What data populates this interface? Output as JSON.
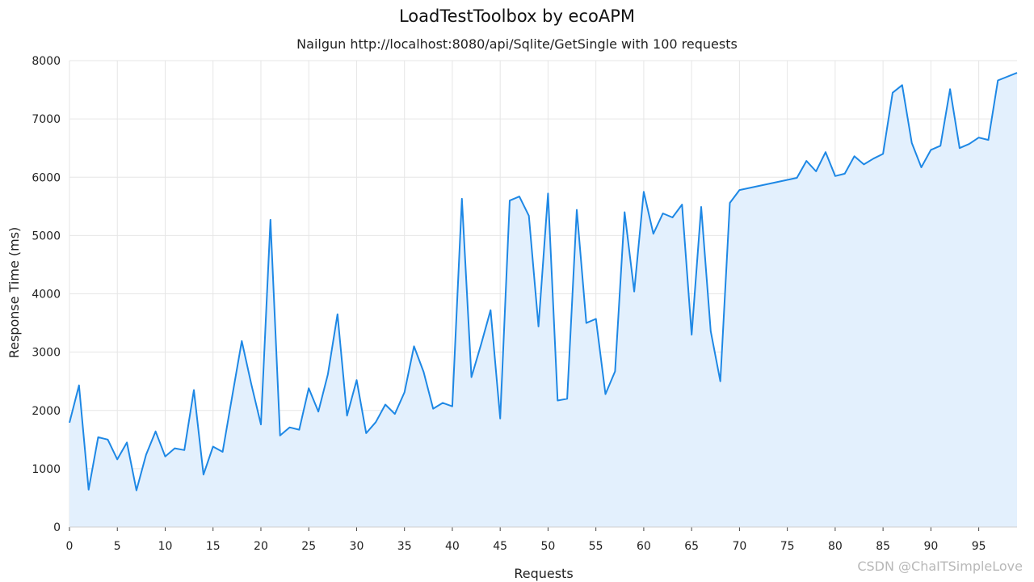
{
  "chart_data": {
    "type": "area",
    "title": "LoadTestToolbox by ecoAPM",
    "subtitle": "Nailgun http://localhost:8080/api/Sqlite/GetSingle with 100 requests",
    "xlabel": "Requests",
    "ylabel": "Response Time (ms)",
    "xlim": [
      0,
      99
    ],
    "ylim": [
      0,
      8000
    ],
    "x_ticks": [
      0,
      5,
      10,
      15,
      20,
      25,
      30,
      35,
      40,
      45,
      50,
      55,
      60,
      65,
      70,
      75,
      80,
      85,
      90,
      95
    ],
    "y_ticks": [
      0,
      1000,
      2000,
      3000,
      4000,
      5000,
      6000,
      7000,
      8000
    ],
    "grid": true,
    "line_color": "#1e88e5",
    "fill_color": "#e3f0fd",
    "x": [
      0,
      1,
      2,
      3,
      4,
      5,
      6,
      7,
      8,
      9,
      10,
      11,
      12,
      13,
      14,
      15,
      16,
      17,
      18,
      19,
      20,
      21,
      22,
      23,
      24,
      25,
      26,
      27,
      28,
      29,
      30,
      31,
      32,
      33,
      34,
      35,
      36,
      37,
      38,
      39,
      40,
      41,
      42,
      43,
      44,
      45,
      46,
      47,
      48,
      49,
      50,
      51,
      52,
      53,
      54,
      55,
      56,
      57,
      58,
      59,
      60,
      61,
      62,
      63,
      64,
      65,
      66,
      67,
      68,
      69,
      70,
      76,
      77,
      78,
      79,
      80,
      81,
      82,
      83,
      84,
      85,
      86,
      87,
      88,
      89,
      90,
      91,
      92,
      93,
      94,
      95,
      96,
      97,
      99
    ],
    "y": [
      1790,
      2430,
      640,
      1540,
      1500,
      1160,
      1450,
      630,
      1240,
      1640,
      1210,
      1350,
      1320,
      2350,
      900,
      1380,
      1290,
      2240,
      3190,
      2450,
      1760,
      5270,
      1570,
      1710,
      1670,
      2380,
      1980,
      2620,
      3650,
      1910,
      2520,
      1610,
      1800,
      2100,
      1940,
      2310,
      3100,
      2660,
      2030,
      2130,
      2070,
      5630,
      2570,
      3130,
      3720,
      1860,
      5600,
      5670,
      5340,
      3440,
      5720,
      2170,
      2200,
      5440,
      3500,
      3570,
      2280,
      2670,
      5400,
      4040,
      5750,
      5030,
      5380,
      5310,
      5530,
      3300,
      5490,
      3360,
      2500,
      5560,
      5780,
      5990,
      6280,
      6100,
      6430,
      6020,
      6060,
      6360,
      6220,
      6320,
      6400,
      7450,
      7580,
      6590,
      6170,
      6470,
      6540,
      7510,
      6500,
      6570,
      6680,
      6640,
      7660,
      7790
    ]
  },
  "watermark": "CSDN @ChaITSimpleLove"
}
